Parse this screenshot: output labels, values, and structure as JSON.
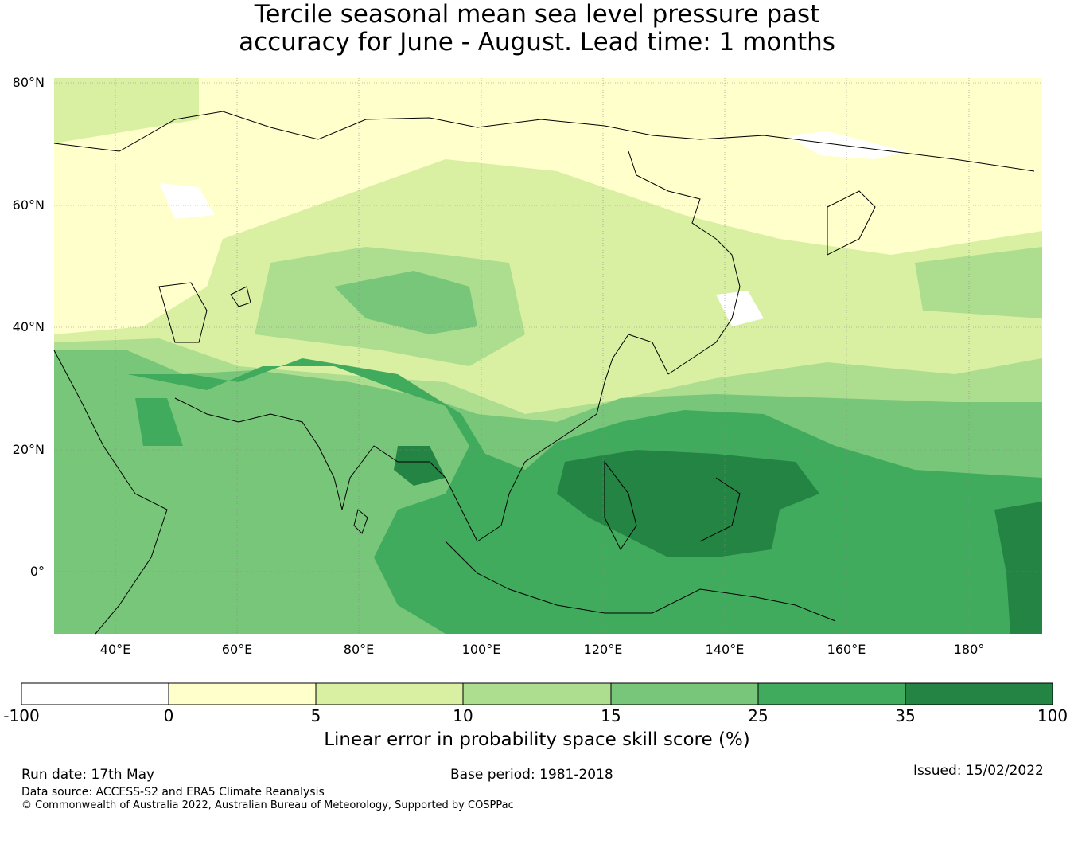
{
  "title": {
    "line1": "Tercile seasonal mean sea level pressure past",
    "line2": "accuracy for June - August. Lead time: 1 months"
  },
  "map": {
    "lat_labels": [
      "80°N",
      "60°N",
      "40°N",
      "20°N",
      "0°"
    ],
    "lon_labels": [
      "40°E",
      "60°E",
      "80°E",
      "100°E",
      "120°E",
      "140°E",
      "160°E",
      "180°"
    ],
    "region": "Asia / Western Pacific",
    "extent": {
      "lon": [
        30,
        192
      ],
      "lat": [
        -10,
        80
      ]
    }
  },
  "colorbar": {
    "title": "Linear error in probability space skill score (%)",
    "ticks": [
      "-100",
      "0",
      "5",
      "10",
      "15",
      "25",
      "35",
      "100"
    ],
    "colors": [
      "#ffffff",
      "#ffffcc",
      "#d9f0a3",
      "#addd8e",
      "#78c679",
      "#41ab5d",
      "#238443"
    ]
  },
  "footer": {
    "run_date": "Run date: 17th May",
    "base_period": "Base period: 1981-2018",
    "issued": "Issued: 15/02/2022",
    "data_source": "Data source: ACCESS-S2 and ERA5 Climate Reanalysis",
    "copyright": "© Commonwealth of Australia 2022, Australian Bureau of Meteorology, Supported by COSPPac"
  }
}
